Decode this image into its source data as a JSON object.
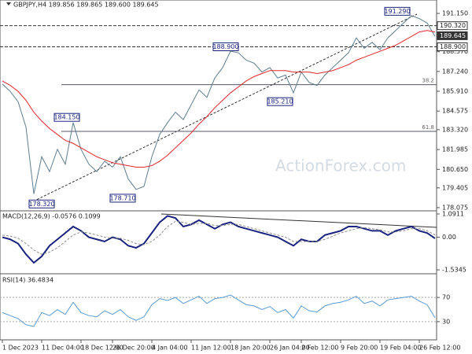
{
  "chart_data": [
    {
      "type": "line",
      "title": "GBPJPY,H4 189.856 189.865 189.600 189.645",
      "watermark": "ActionForex.com",
      "xticks": [
        {
          "value": 0,
          "label": "1 Dec 2023"
        },
        {
          "value": 5,
          "label": "11 Dec 04:00"
        },
        {
          "value": 10,
          "label": "18 Dec 12:00"
        },
        {
          "value": 14,
          "label": "26 Dec 20:00"
        },
        {
          "value": 19,
          "label": "4 Jan 04:00"
        },
        {
          "value": 24,
          "label": "11 Jan 12:00"
        },
        {
          "value": 29,
          "label": "18 Jan 20:00"
        },
        {
          "value": 34,
          "label": "26 Jan 04:00"
        },
        {
          "value": 38,
          "label": "2 Feb 12:00"
        },
        {
          "value": 43,
          "label": "9 Feb 20:00"
        },
        {
          "value": 48,
          "label": "19 Feb 04:00"
        },
        {
          "value": 53,
          "label": "26 Feb 12:00"
        }
      ],
      "ylim": [
        177.86,
        192.05
      ],
      "yticks": [
        {
          "value": 191.15,
          "label": "191.150"
        },
        {
          "value": 188.57,
          "label": "188.570"
        },
        {
          "value": 187.24,
          "label": "187.240"
        },
        {
          "value": 185.91,
          "label": "185.910"
        },
        {
          "value": 184.575,
          "label": "184.575"
        },
        {
          "value": 183.32,
          "label": "183.320"
        },
        {
          "value": 181.985,
          "label": "181.985"
        },
        {
          "value": 180.65,
          "label": "180.650"
        },
        {
          "value": 179.405,
          "label": "179.405"
        },
        {
          "value": 178.075,
          "label": "178.075"
        }
      ],
      "price_labels": [
        {
          "value": 190.32,
          "label": "190.320"
        },
        {
          "value": 189.645,
          "label": "189.645"
        },
        {
          "value": 188.9,
          "label": "188.900"
        }
      ],
      "levels": [
        {
          "value": 186.35,
          "label": "38.2"
        },
        {
          "value": 183.21,
          "label": "61.8"
        }
      ],
      "annotations": [
        {
          "value": 191.29,
          "label": "191.290"
        },
        {
          "value": 188.9,
          "label": "188.900"
        },
        {
          "value": 184.15,
          "label": "184.150"
        },
        {
          "value": 185.21,
          "label": "185.210"
        },
        {
          "value": 178.71,
          "label": "178.710"
        },
        {
          "value": 178.32,
          "label": "178.320"
        }
      ],
      "series": [
        {
          "color": "#5f7d8e",
          "values": [
            186.4,
            185.9,
            185.2,
            183.5,
            179.0,
            181.5,
            180.5,
            182.0,
            181.0,
            183.8,
            182.0,
            181.0,
            180.5,
            181.2,
            180.8,
            181.5,
            180.0,
            179.3,
            179.5,
            181.5,
            183.0,
            183.8,
            184.5,
            184.0,
            185.0,
            186.0,
            185.5,
            186.8,
            187.5,
            188.6,
            188.5,
            188.0,
            187.8,
            187.2,
            187.5,
            186.8,
            187.0,
            185.8,
            187.2,
            186.5,
            186.3,
            187.0,
            187.5,
            188.0,
            188.5,
            189.5,
            188.8,
            189.2,
            188.7,
            189.5,
            190.0,
            190.5,
            191.0,
            190.8,
            190.5,
            189.6
          ]
        },
        {
          "color": "#e0262a",
          "values": [
            186.6,
            186.3,
            185.9,
            185.3,
            184.5,
            183.9,
            183.4,
            183.0,
            182.6,
            182.4,
            182.1,
            181.8,
            181.5,
            181.3,
            181.1,
            181.0,
            180.9,
            180.8,
            180.8,
            180.9,
            181.2,
            181.6,
            182.1,
            182.6,
            183.1,
            183.7,
            184.2,
            184.8,
            185.3,
            185.8,
            186.2,
            186.6,
            186.9,
            187.1,
            187.3,
            187.3,
            187.3,
            187.2,
            187.2,
            187.2,
            187.1,
            187.2,
            187.3,
            187.5,
            187.7,
            188.0,
            188.2,
            188.4,
            188.6,
            188.8,
            189.0,
            189.3,
            189.6,
            189.9,
            190.0,
            189.9
          ]
        }
      ]
    },
    {
      "type": "line",
      "title": "MACD(12,26,9) -0.0576 0.1099",
      "ylim": [
        -1.68,
        1.165
      ],
      "yticks": [
        1.0911,
        {
          "value": 0,
          "label": "0.00"
        },
        -1.5345
      ],
      "series": [
        {
          "color": "#1a237e",
          "values": [
            0.0,
            -0.1,
            -0.3,
            -0.8,
            -1.2,
            -0.9,
            -0.4,
            -0.1,
            0.2,
            0.5,
            0.3,
            0.0,
            -0.1,
            -0.2,
            0.0,
            -0.1,
            -0.4,
            -0.5,
            -0.3,
            0.2,
            0.7,
            1.0,
            0.9,
            0.5,
            0.6,
            0.8,
            0.6,
            0.4,
            0.6,
            0.7,
            0.5,
            0.4,
            0.3,
            0.2,
            0.1,
            0.0,
            -0.2,
            -0.4,
            -0.1,
            -0.2,
            -0.2,
            0.1,
            0.2,
            0.3,
            0.5,
            0.5,
            0.4,
            0.3,
            0.3,
            0.1,
            0.3,
            0.4,
            0.5,
            0.3,
            0.2,
            -0.0576
          ]
        },
        {
          "color": "#8c8c8c",
          "values": [
            0.1,
            0.05,
            -0.05,
            -0.3,
            -0.6,
            -0.8,
            -0.7,
            -0.5,
            -0.2,
            0.1,
            0.25,
            0.2,
            0.1,
            0.0,
            -0.05,
            -0.05,
            -0.15,
            -0.3,
            -0.35,
            -0.2,
            0.1,
            0.5,
            0.75,
            0.7,
            0.6,
            0.65,
            0.65,
            0.55,
            0.55,
            0.6,
            0.6,
            0.5,
            0.4,
            0.3,
            0.2,
            0.1,
            0.0,
            -0.2,
            -0.2,
            -0.2,
            -0.2,
            -0.1,
            0.05,
            0.2,
            0.3,
            0.4,
            0.45,
            0.4,
            0.35,
            0.25,
            0.25,
            0.3,
            0.4,
            0.4,
            0.3,
            0.1099
          ]
        }
      ]
    },
    {
      "type": "line",
      "title": "RSI(14) 36.4834",
      "ylim": [
        0,
        100
      ],
      "yticks": [
        70,
        30
      ],
      "series": [
        {
          "color": "#5c9bd5",
          "values": [
            45,
            40,
            35,
            25,
            22,
            45,
            40,
            50,
            42,
            62,
            45,
            40,
            38,
            48,
            42,
            50,
            38,
            32,
            38,
            58,
            68,
            65,
            70,
            60,
            66,
            72,
            60,
            68,
            70,
            74,
            66,
            58,
            56,
            50,
            55,
            45,
            50,
            36,
            56,
            48,
            46,
            56,
            60,
            62,
            66,
            72,
            60,
            64,
            56,
            66,
            68,
            70,
            72,
            64,
            58,
            36.4834
          ]
        }
      ]
    }
  ]
}
